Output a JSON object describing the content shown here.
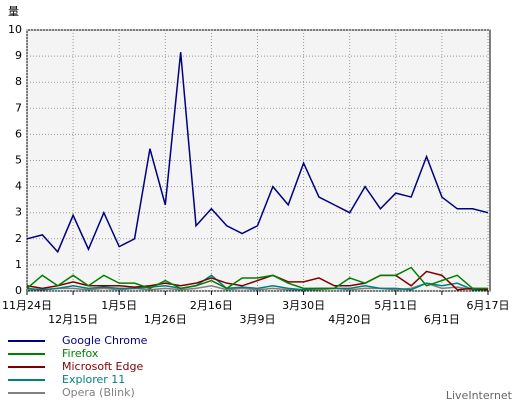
{
  "chart_data": {
    "type": "line",
    "y_label": "量",
    "footer": "LiveInternet",
    "categories": [
      "11月24日",
      null,
      null,
      "12月15日",
      null,
      null,
      "1月5日",
      null,
      null,
      "1月26日",
      null,
      null,
      "2月16日",
      null,
      null,
      "3月9日",
      null,
      null,
      "3月30日",
      null,
      null,
      "4月20日",
      null,
      null,
      "5月11日",
      null,
      null,
      "6月1日",
      null,
      null,
      "6月17日"
    ],
    "ylim": [
      0,
      10
    ],
    "yticks": [
      0,
      1,
      2,
      3,
      4,
      5,
      6,
      7,
      8,
      9,
      10
    ],
    "grid": true,
    "series": [
      {
        "name": "Google Chrome",
        "color": "#000080",
        "values": [
          2.0,
          2.15,
          1.5,
          2.9,
          1.6,
          3.0,
          1.7,
          2.0,
          5.45,
          3.3,
          9.15,
          2.5,
          3.15,
          2.5,
          2.2,
          2.5,
          4.0,
          3.3,
          4.9,
          3.6,
          3.3,
          3.0,
          4.0,
          3.15,
          3.75,
          3.6,
          5.15,
          3.6,
          3.15,
          3.15,
          3.0
        ]
      },
      {
        "name": "Firefox",
        "color": "#008000",
        "values": [
          0.1,
          0.6,
          0.2,
          0.6,
          0.2,
          0.6,
          0.3,
          0.3,
          0.1,
          0.4,
          0.1,
          0.2,
          0.4,
          0.1,
          0.5,
          0.5,
          0.6,
          0.3,
          0.1,
          0.1,
          0.1,
          0.5,
          0.3,
          0.6,
          0.6,
          0.9,
          0.2,
          0.4,
          0.6,
          0.1,
          0.1
        ]
      },
      {
        "name": "Microsoft Edge",
        "color": "#800000",
        "values": [
          0.2,
          0.1,
          0.2,
          0.35,
          0.2,
          0.2,
          0.2,
          0.15,
          0.2,
          0.3,
          0.2,
          0.3,
          0.5,
          0.3,
          0.2,
          0.4,
          0.6,
          0.35,
          0.35,
          0.5,
          0.2,
          0.2,
          0.3,
          0.6,
          0.6,
          0.2,
          0.75,
          0.6,
          0.05,
          0.1,
          0.05
        ]
      },
      {
        "name": "Explorer 11",
        "color": "#008080",
        "values": [
          0.1,
          0.05,
          0.1,
          0.2,
          0.1,
          0.15,
          0.1,
          0.1,
          0.15,
          0.2,
          0.1,
          0.2,
          0.6,
          0.1,
          0.15,
          0.1,
          0.2,
          0.1,
          0.05,
          0.1,
          0.1,
          0.1,
          0.2,
          0.1,
          0.1,
          0.05,
          0.3,
          0.2,
          0.3,
          0.05,
          0.05
        ]
      },
      {
        "name": "Opera (Blink)",
        "color": "#808080",
        "values": [
          0.05,
          0.05,
          0.1,
          0.1,
          0.05,
          0.1,
          0.05,
          0.1,
          0.05,
          0.1,
          0.05,
          0.1,
          0.2,
          0.05,
          0.1,
          0.05,
          0.1,
          0.05,
          0.05,
          0.05,
          0.1,
          0.05,
          0.1,
          0.1,
          0.05,
          0.1,
          0.3,
          0.1,
          0.15,
          0.05,
          0.05
        ]
      }
    ]
  }
}
